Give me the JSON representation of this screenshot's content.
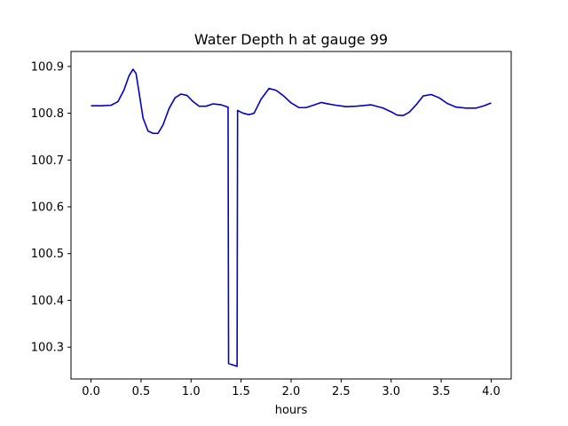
{
  "chart_data": {
    "type": "line",
    "title": "Water Depth h at gauge 99",
    "xlabel": "hours",
    "ylabel": "",
    "xlim": [
      -0.2,
      4.2
    ],
    "ylim": [
      100.232,
      100.932
    ],
    "xticks": [
      0.0,
      0.5,
      1.0,
      1.5,
      2.0,
      2.5,
      3.0,
      3.5,
      4.0
    ],
    "xtick_labels": [
      "0.0",
      "0.5",
      "1.0",
      "1.5",
      "2.0",
      "2.5",
      "3.0",
      "3.5",
      "4.0"
    ],
    "yticks": [
      100.3,
      100.4,
      100.5,
      100.6,
      100.7,
      100.8,
      100.9
    ],
    "ytick_labels": [
      "100.3",
      "100.4",
      "100.5",
      "100.6",
      "100.7",
      "100.8",
      "100.9"
    ],
    "grid": false,
    "colors": {
      "line": "#0000cc",
      "axes": "#000000",
      "background": "#ffffff"
    },
    "series": [
      {
        "x": [
          0.0,
          0.1,
          0.2,
          0.27,
          0.33,
          0.38,
          0.42,
          0.45,
          0.48,
          0.52,
          0.57,
          0.62,
          0.67,
          0.72,
          0.78,
          0.84,
          0.9,
          0.96,
          1.02,
          1.08,
          1.15,
          1.22,
          1.3,
          1.37,
          1.375,
          1.46,
          1.465,
          1.52,
          1.58,
          1.63,
          1.7,
          1.78,
          1.85,
          1.92,
          2.0,
          2.08,
          2.15,
          2.22,
          2.3,
          2.37,
          2.45,
          2.55,
          2.65,
          2.8,
          2.92,
          3.0,
          3.06,
          3.12,
          3.18,
          3.25,
          3.32,
          3.4,
          3.48,
          3.56,
          3.65,
          3.75,
          3.85,
          3.93,
          4.0
        ],
        "y": [
          100.816,
          100.816,
          100.817,
          100.825,
          100.85,
          100.88,
          100.894,
          100.885,
          100.845,
          100.79,
          100.762,
          100.757,
          100.757,
          100.775,
          100.81,
          100.833,
          100.841,
          100.838,
          100.825,
          100.815,
          100.815,
          100.82,
          100.818,
          100.813,
          100.265,
          100.259,
          100.806,
          100.8,
          100.797,
          100.8,
          100.83,
          100.853,
          100.849,
          100.838,
          100.822,
          100.812,
          100.812,
          100.817,
          100.823,
          100.82,
          100.817,
          100.814,
          100.815,
          100.818,
          100.811,
          100.803,
          100.796,
          100.795,
          100.802,
          100.818,
          100.837,
          100.84,
          100.833,
          100.821,
          100.813,
          100.811,
          100.811,
          100.816,
          100.822
        ]
      }
    ]
  }
}
